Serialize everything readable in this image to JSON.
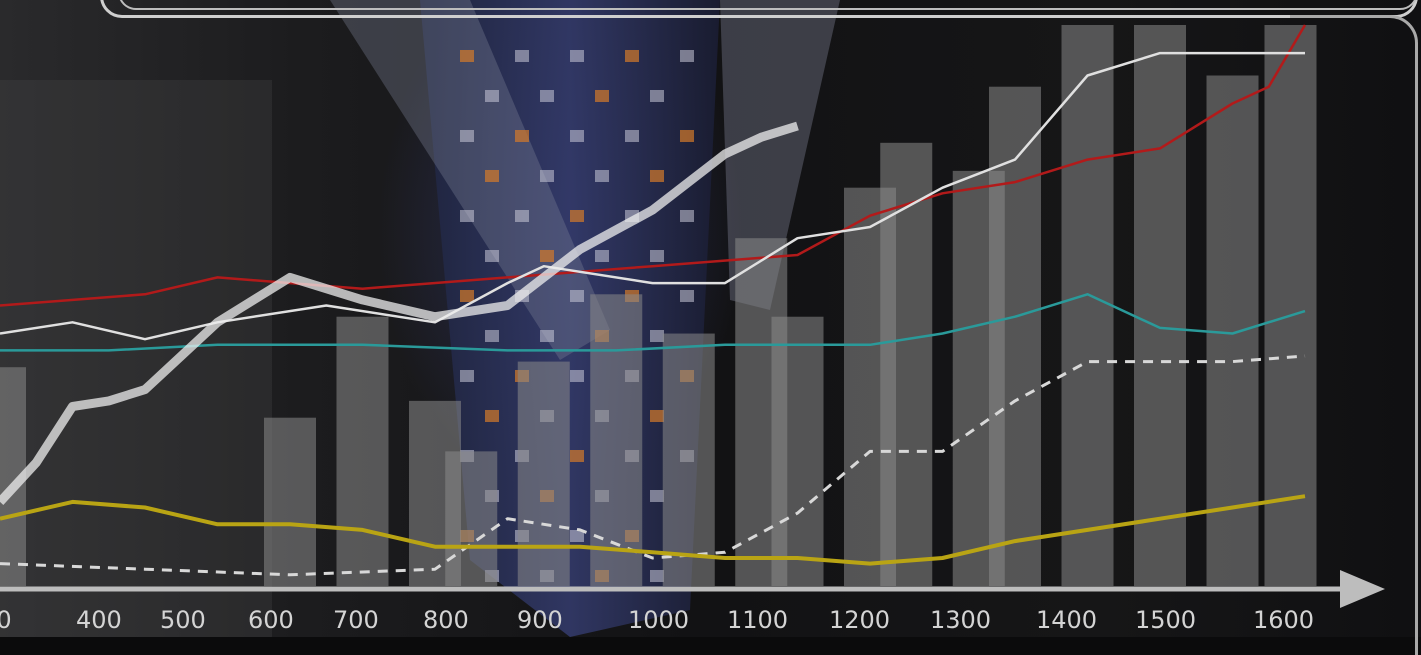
{
  "chart_data": {
    "type": "bar",
    "x_ticks": [
      "0",
      "400",
      "500",
      "600",
      "700",
      "800",
      "900",
      "1000",
      "1100",
      "1200",
      "1300",
      "1400",
      "1500",
      "1600"
    ],
    "bars": {
      "x": [
        0,
        400,
        500,
        600,
        650,
        750,
        850,
        950,
        1050,
        1100,
        1200,
        1250,
        1350,
        1400,
        1500,
        1600,
        1700,
        1780
      ],
      "values": [
        0.39,
        0.3,
        0.48,
        0.33,
        0.24,
        0.4,
        0.52,
        0.45,
        0.62,
        0.48,
        0.71,
        0.79,
        0.74,
        0.89,
        1.0,
        1.0,
        0.91,
        1.0
      ]
    },
    "series": [
      {
        "color": "#b21a1a",
        "style": "solid",
        "x": [
          0,
          200,
          300,
          500,
          700,
          900,
          1100,
          1200,
          1300,
          1400,
          1500,
          1600,
          1700,
          1750,
          1800
        ],
        "y": [
          0.5,
          0.52,
          0.55,
          0.53,
          0.55,
          0.57,
          0.59,
          0.66,
          0.7,
          0.72,
          0.76,
          0.78,
          0.86,
          0.89,
          1.0
        ]
      },
      {
        "color": "#e0e0e0",
        "style": "solid",
        "x": [
          0,
          100,
          200,
          300,
          450,
          600,
          700,
          750,
          900,
          1000,
          1100,
          1200,
          1300,
          1400,
          1500,
          1600,
          1700,
          1800
        ],
        "y": [
          0.45,
          0.47,
          0.44,
          0.47,
          0.5,
          0.47,
          0.54,
          0.57,
          0.54,
          0.54,
          0.62,
          0.64,
          0.71,
          0.76,
          0.91,
          0.95,
          0.95,
          0.95
        ]
      },
      {
        "color": "#2a9a9a",
        "style": "solid",
        "x": [
          0,
          150,
          300,
          500,
          700,
          850,
          1000,
          1100,
          1200,
          1300,
          1400,
          1500,
          1600,
          1700,
          1800
        ],
        "y": [
          0.42,
          0.42,
          0.43,
          0.43,
          0.42,
          0.42,
          0.43,
          0.43,
          0.43,
          0.45,
          0.48,
          0.52,
          0.46,
          0.45,
          0.49
        ]
      },
      {
        "color": "#d8d8d8",
        "style": "dashed",
        "x": [
          0,
          200,
          400,
          600,
          700,
          800,
          900,
          1000,
          1100,
          1200,
          1300,
          1400,
          1500,
          1600,
          1700,
          1800
        ],
        "y": [
          0.04,
          0.03,
          0.02,
          0.03,
          0.12,
          0.1,
          0.05,
          0.06,
          0.13,
          0.24,
          0.24,
          0.33,
          0.4,
          0.4,
          0.4,
          0.41
        ]
      },
      {
        "color": "#b9a414",
        "style": "solid",
        "x": [
          0,
          100,
          200,
          300,
          400,
          500,
          600,
          700,
          800,
          900,
          1000,
          1100,
          1200,
          1300,
          1400,
          1500,
          1600,
          1700,
          1800
        ],
        "y": [
          0.12,
          0.15,
          0.14,
          0.11,
          0.11,
          0.1,
          0.07,
          0.07,
          0.07,
          0.06,
          0.05,
          0.05,
          0.04,
          0.05,
          0.08,
          0.1,
          0.12,
          0.14,
          0.16
        ]
      },
      {
        "color": "#eeeeee",
        "style": "thick",
        "x": [
          0,
          50,
          100,
          150,
          200,
          300,
          400,
          500,
          600,
          700,
          800,
          900,
          1000,
          1050,
          1100
        ],
        "y": [
          0.15,
          0.22,
          0.32,
          0.33,
          0.35,
          0.47,
          0.55,
          0.51,
          0.48,
          0.5,
          0.6,
          0.67,
          0.77,
          0.8,
          0.82
        ]
      }
    ]
  }
}
